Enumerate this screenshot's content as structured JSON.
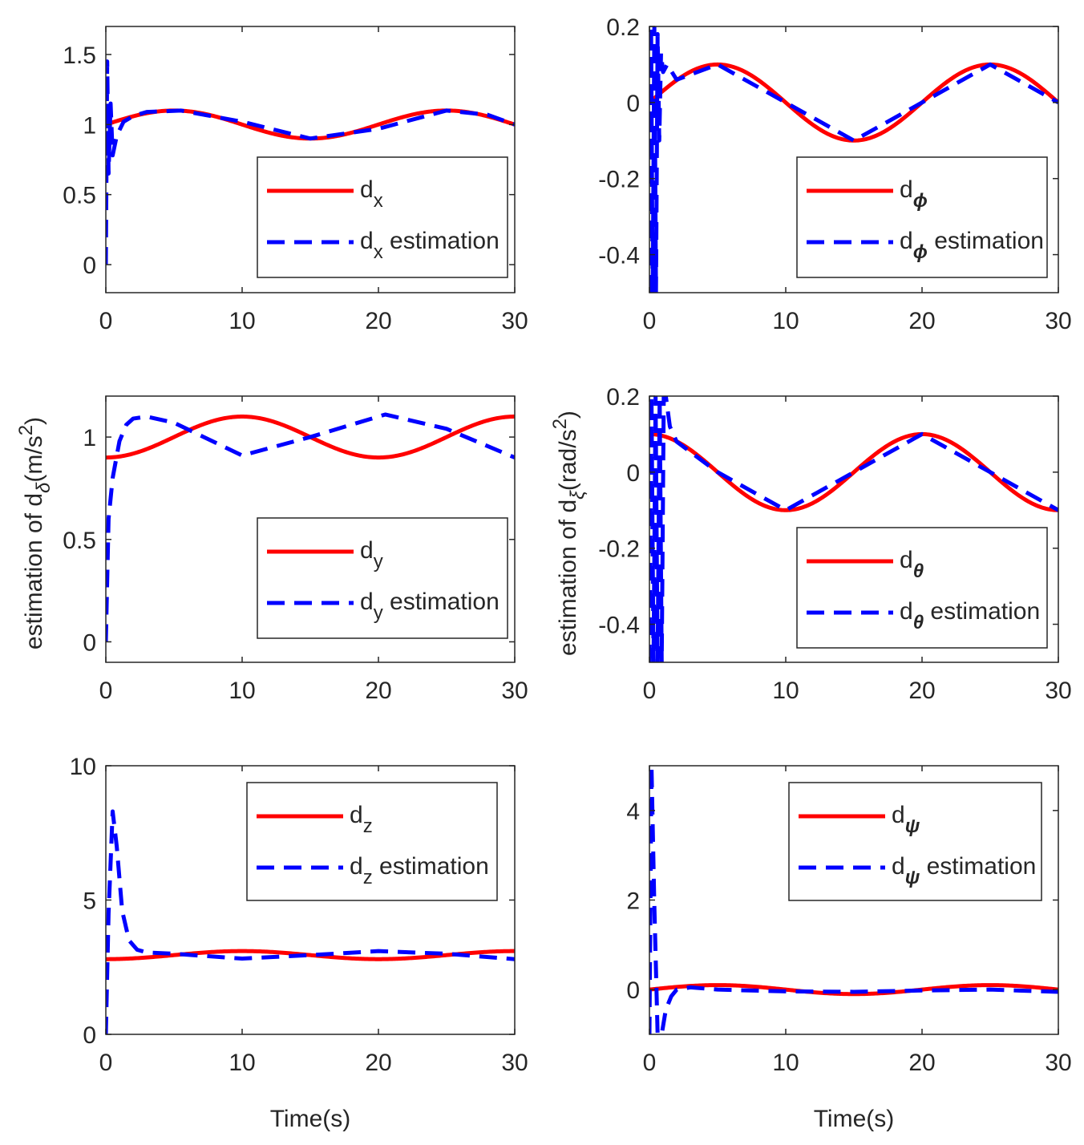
{
  "figure": {
    "ylabel_left": {
      "prefix": "estimation of d",
      "sub": "δ",
      "unit_open": "(m/s",
      "sup": "2",
      "unit_close": ")"
    },
    "ylabel_right": {
      "prefix": "estimation of d",
      "sub": "ξ",
      "unit_open": "(rad/s",
      "sup": "2",
      "unit_close": ")"
    },
    "xlabel": "Time(s)",
    "colors": {
      "actual": "#ff0000",
      "estimate": "#0000ff",
      "axis": "#262626"
    }
  },
  "chart_data": [
    {
      "id": "dx",
      "type": "line",
      "xlim": [
        0,
        30
      ],
      "ylim": [
        -0.2,
        1.7
      ],
      "xticks": [
        0,
        10,
        20,
        30
      ],
      "xticklabels": [
        "0",
        "10",
        "20",
        "30"
      ],
      "yticks": [
        0,
        0.5,
        1,
        1.5
      ],
      "yticklabels": [
        "0",
        "0.5",
        "1",
        "1.5"
      ],
      "xlabel": "",
      "legend": {
        "position": "middle-right",
        "entries": [
          {
            "base": "d",
            "sub": "x",
            "tail": ""
          },
          {
            "base": "d",
            "sub": "x",
            "tail": " estimation"
          }
        ]
      },
      "actual": {
        "name": "d_x",
        "offset": 1.0,
        "amplitude": 0.1,
        "period": 20,
        "phase": 0,
        "func": "sin"
      },
      "estimate": {
        "name": "d_x estimation",
        "points": [
          [
            0,
            0
          ],
          [
            0.1,
            1.45
          ],
          [
            0.2,
            0.65
          ],
          [
            0.35,
            1.15
          ],
          [
            0.5,
            0.78
          ],
          [
            0.8,
            0.92
          ],
          [
            1.3,
            1.02
          ],
          [
            2,
            1.06
          ],
          [
            3,
            1.09
          ],
          [
            5.5,
            1.1
          ],
          [
            10,
            1.02
          ],
          [
            15,
            0.9
          ],
          [
            20,
            0.97
          ],
          [
            25,
            1.1
          ],
          [
            28,
            1.07
          ],
          [
            30,
            1.0
          ]
        ]
      }
    },
    {
      "id": "dphi",
      "type": "line",
      "xlim": [
        0,
        30
      ],
      "ylim": [
        -0.5,
        0.2
      ],
      "xticks": [
        0,
        10,
        20,
        30
      ],
      "xticklabels": [
        "0",
        "10",
        "20",
        "30"
      ],
      "yticks": [
        -0.4,
        -0.2,
        0,
        0.2
      ],
      "yticklabels": [
        "-0.4",
        "-0.2",
        "0",
        "0.2"
      ],
      "xlabel": "",
      "legend": {
        "position": "bottom-right",
        "entries": [
          {
            "base": "d",
            "sub": "ϕ",
            "tail": ""
          },
          {
            "base": "d",
            "sub": "ϕ",
            "tail": " estimation"
          }
        ]
      },
      "actual": {
        "name": "d_phi",
        "offset": 0,
        "amplitude": 0.1,
        "period": 20,
        "phase": 0,
        "func": "sin"
      },
      "estimate": {
        "name": "d_phi estimation",
        "points": [
          [
            0,
            -0.5
          ],
          [
            0.12,
            0.2
          ],
          [
            0.24,
            -0.5
          ],
          [
            0.36,
            0.2
          ],
          [
            0.48,
            -0.5
          ],
          [
            0.6,
            0.18
          ],
          [
            0.72,
            -0.1
          ],
          [
            0.85,
            0.13
          ],
          [
            1.0,
            0.08
          ],
          [
            1.3,
            0.1
          ],
          [
            2,
            0.06
          ],
          [
            5,
            0.1
          ],
          [
            10,
            0
          ],
          [
            15,
            -0.1
          ],
          [
            20,
            0
          ],
          [
            25,
            0.1
          ],
          [
            30,
            0
          ]
        ]
      }
    },
    {
      "id": "dy",
      "type": "line",
      "xlim": [
        0,
        30
      ],
      "ylim": [
        -0.1,
        1.2
      ],
      "xticks": [
        0,
        10,
        20,
        30
      ],
      "xticklabels": [
        "0",
        "10",
        "20",
        "30"
      ],
      "yticks": [
        0,
        0.5,
        1
      ],
      "yticklabels": [
        "0",
        "0.5",
        "1"
      ],
      "xlabel": "",
      "legend": {
        "position": "bottom-right",
        "entries": [
          {
            "base": "d",
            "sub": "y",
            "tail": ""
          },
          {
            "base": "d",
            "sub": "y",
            "tail": " estimation"
          }
        ]
      },
      "actual": {
        "name": "d_y",
        "offset": 1.0,
        "amplitude": 0.1,
        "period": 20,
        "phase": 5,
        "func": "sin"
      },
      "estimate": {
        "name": "d_y estimation",
        "points": [
          [
            0,
            0
          ],
          [
            0.2,
            0.6
          ],
          [
            0.5,
            0.8
          ],
          [
            1.0,
            0.98
          ],
          [
            1.5,
            1.06
          ],
          [
            2,
            1.09
          ],
          [
            3,
            1.1
          ],
          [
            5,
            1.07
          ],
          [
            10,
            0.91
          ],
          [
            15,
            1.0
          ],
          [
            20.5,
            1.11
          ],
          [
            25,
            1.04
          ],
          [
            30,
            0.9
          ]
        ]
      }
    },
    {
      "id": "dtheta",
      "type": "line",
      "xlim": [
        0,
        30
      ],
      "ylim": [
        -0.5,
        0.2
      ],
      "xticks": [
        0,
        10,
        20,
        30
      ],
      "xticklabels": [
        "0",
        "10",
        "20",
        "30"
      ],
      "yticks": [
        -0.4,
        -0.2,
        0,
        0.2
      ],
      "yticklabels": [
        "-0.4",
        "-0.2",
        "0",
        "0.2"
      ],
      "xlabel": "",
      "legend": {
        "position": "bottom-right",
        "entries": [
          {
            "base": "d",
            "sub": "θ",
            "tail": ""
          },
          {
            "base": "d",
            "sub": "θ",
            "tail": " estimation"
          }
        ]
      },
      "actual": {
        "name": "d_theta",
        "offset": 0,
        "amplitude": 0.1,
        "period": 20,
        "phase": 0,
        "func": "cos"
      },
      "estimate": {
        "name": "d_theta estimation",
        "points": [
          [
            0,
            -0.5
          ],
          [
            0.15,
            0.2
          ],
          [
            0.3,
            -0.5
          ],
          [
            0.45,
            0.2
          ],
          [
            0.6,
            -0.5
          ],
          [
            0.75,
            0.2
          ],
          [
            0.9,
            -0.5
          ],
          [
            1.05,
            0.2
          ],
          [
            1.2,
            0.2
          ],
          [
            1.5,
            0.12
          ],
          [
            2,
            0.08
          ],
          [
            5,
            0
          ],
          [
            10,
            -0.1
          ],
          [
            15,
            0
          ],
          [
            20,
            0.1
          ],
          [
            25,
            0
          ],
          [
            30,
            -0.1
          ]
        ]
      }
    },
    {
      "id": "dz",
      "type": "line",
      "xlim": [
        0,
        30
      ],
      "ylim": [
        0,
        10
      ],
      "xticks": [
        0,
        10,
        20,
        30
      ],
      "xticklabels": [
        "0",
        "10",
        "20",
        "30"
      ],
      "yticks": [
        0,
        5,
        10
      ],
      "yticklabels": [
        "0",
        "5",
        "10"
      ],
      "xlabel": "Time(s)",
      "legend": {
        "position": "top-right",
        "entries": [
          {
            "base": "d",
            "sub": "z",
            "tail": ""
          },
          {
            "base": "d",
            "sub": "z",
            "tail": " estimation"
          }
        ]
      },
      "actual": {
        "name": "d_z",
        "offset": 2.95,
        "amplitude": 0.15,
        "period": 20,
        "phase": 5,
        "func": "sin"
      },
      "estimate": {
        "name": "d_z estimation",
        "points": [
          [
            0,
            0
          ],
          [
            0.2,
            4.5
          ],
          [
            0.5,
            8.3
          ],
          [
            0.8,
            7.0
          ],
          [
            1.2,
            4.6
          ],
          [
            1.7,
            3.5
          ],
          [
            2.3,
            3.15
          ],
          [
            3,
            3.05
          ],
          [
            5,
            3.0
          ],
          [
            10,
            2.82
          ],
          [
            15,
            2.95
          ],
          [
            20,
            3.1
          ],
          [
            25,
            3.0
          ],
          [
            30,
            2.8
          ]
        ]
      }
    },
    {
      "id": "dpsi",
      "type": "line",
      "xlim": [
        0,
        30
      ],
      "ylim": [
        -1,
        5
      ],
      "xticks": [
        0,
        10,
        20,
        30
      ],
      "xticklabels": [
        "0",
        "10",
        "20",
        "30"
      ],
      "yticks": [
        0,
        2,
        4
      ],
      "yticklabels": [
        "0",
        "2",
        "4"
      ],
      "xlabel": "Time(s)",
      "legend": {
        "position": "top-right",
        "entries": [
          {
            "base": "d",
            "sub": "ψ",
            "tail": ""
          },
          {
            "base": "d",
            "sub": "ψ",
            "tail": " estimation"
          }
        ]
      },
      "actual": {
        "name": "d_psi",
        "offset": 0,
        "amplitude": 0.1,
        "period": 20,
        "phase": 0,
        "func": "sin"
      },
      "estimate": {
        "name": "d_psi estimation",
        "points": [
          [
            0,
            -1
          ],
          [
            0.15,
            5
          ],
          [
            0.35,
            2.0
          ],
          [
            0.6,
            -1
          ],
          [
            0.9,
            -1
          ],
          [
            1.2,
            -0.45
          ],
          [
            1.6,
            -0.15
          ],
          [
            2,
            0
          ],
          [
            3,
            0.05
          ],
          [
            5,
            0
          ],
          [
            10,
            -0.04
          ],
          [
            15,
            -0.05
          ],
          [
            20,
            -0.02
          ],
          [
            25,
            0
          ],
          [
            30,
            -0.05
          ]
        ]
      }
    }
  ]
}
